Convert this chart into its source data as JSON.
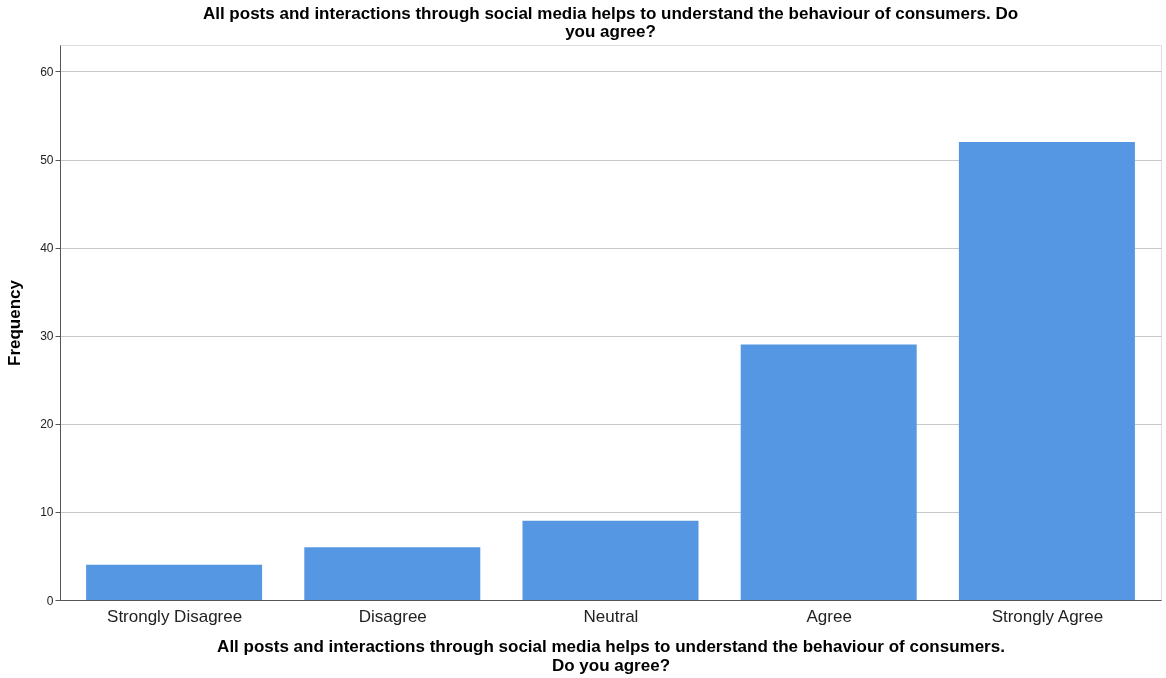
{
  "chart_data": {
    "type": "bar",
    "title": "All posts and interactions through social media helps to understand the behaviour of consumers. Do you agree?",
    "xlabel": "All posts and interactions through social media helps to understand the behaviour of consumers. Do you agree?",
    "ylabel": "Frequency",
    "categories": [
      "Strongly Disagree",
      "Disagree",
      "Neutral",
      "Agree",
      "Strongly Agree"
    ],
    "values": [
      4,
      6,
      9,
      29,
      52
    ],
    "color": "#5697e4",
    "ylim": [
      0,
      63
    ],
    "yticks": [
      0,
      10,
      20,
      30,
      40,
      50,
      60
    ],
    "grid": "y"
  }
}
